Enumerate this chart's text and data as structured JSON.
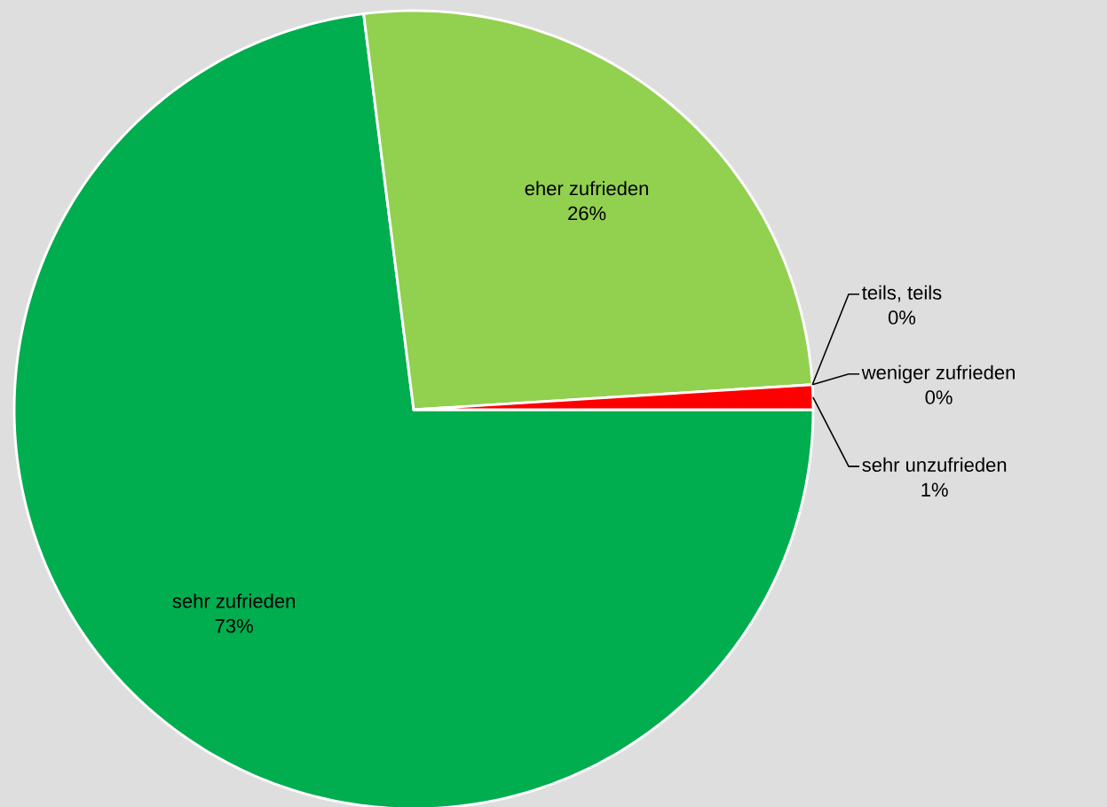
{
  "chart_data": {
    "type": "pie",
    "categories": [
      "sehr zufrieden",
      "eher zufrieden",
      "teils, teils",
      "weniger zufrieden",
      "sehr unzufrieden"
    ],
    "values": [
      73,
      26,
      0,
      0,
      1
    ],
    "value_labels": [
      "73%",
      "26%",
      "0%",
      "0%",
      "1%"
    ],
    "colors": [
      "#00ad4f",
      "#92d050",
      "#ffc000",
      "#ff9900",
      "#ff0000"
    ]
  }
}
